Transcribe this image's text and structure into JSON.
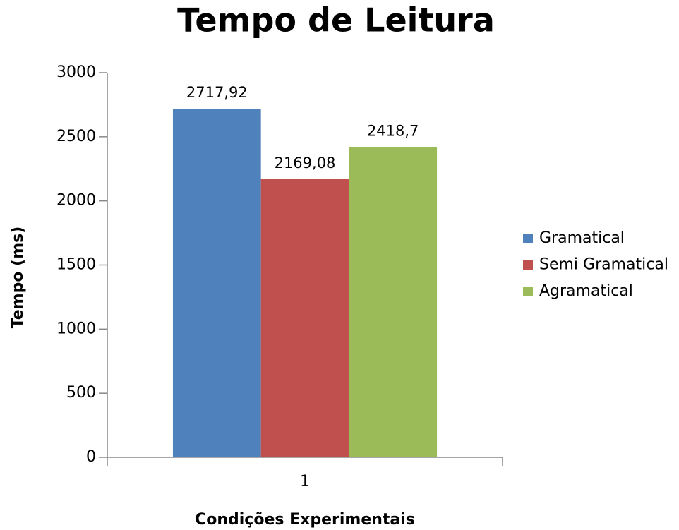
{
  "chart_data": {
    "type": "bar",
    "title": "Tempo de Leitura",
    "x_label": "Condições Experimentais",
    "y_label": "Tempo (ms)",
    "categories": [
      "1"
    ],
    "series": [
      {
        "name": "Gramatical",
        "color": "#4f81bd",
        "values": [
          2717.92
        ],
        "value_labels": [
          "2717,92"
        ]
      },
      {
        "name": "Semi Gramatical",
        "color": "#c0504d",
        "values": [
          2169.08
        ],
        "value_labels": [
          "2169,08"
        ]
      },
      {
        "name": "Agramatical",
        "color": "#9bbb59",
        "values": [
          2418.7
        ],
        "value_labels": [
          "2418,7"
        ]
      }
    ],
    "ylim": [
      0,
      3000
    ],
    "yticks": [
      0,
      500,
      1000,
      1500,
      2000,
      2500,
      3000
    ],
    "grid": false,
    "legend": "right"
  }
}
